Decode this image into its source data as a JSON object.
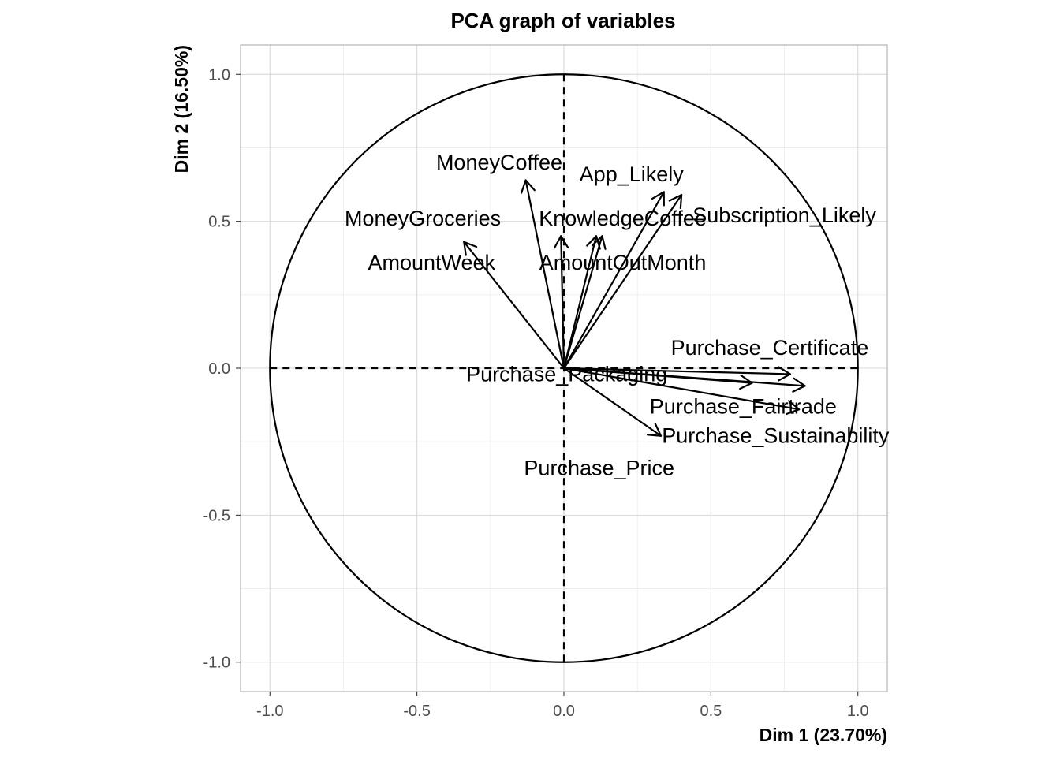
{
  "chart_data": {
    "type": "scatter",
    "title": "PCA graph of variables",
    "xlabel": "Dim 1 (23.70%)",
    "ylabel": "Dim 2 (16.50%)",
    "xlim": [
      -1.1,
      1.1
    ],
    "ylim": [
      -1.1,
      1.1
    ],
    "x_ticks": [
      -1.0,
      -0.5,
      0.0,
      0.5,
      1.0
    ],
    "y_ticks": [
      -1.0,
      -0.5,
      0.0,
      0.5,
      1.0
    ],
    "x_tick_labels": [
      "-1.0",
      "-0.5",
      "0.0",
      "0.5",
      "1.0"
    ],
    "y_tick_labels": [
      "-1.0",
      "-0.5",
      "0.0",
      "0.5",
      "1.0"
    ],
    "grid": true,
    "unit_circle": true,
    "variables": [
      {
        "name": "MoneyCoffee",
        "x": -0.13,
        "y": 0.64,
        "label_x": -0.22,
        "label_y": 0.7
      },
      {
        "name": "App_Likely",
        "x": 0.34,
        "y": 0.6,
        "label_x": 0.23,
        "label_y": 0.66
      },
      {
        "name": "Subscription_Likely",
        "x": 0.4,
        "y": 0.59,
        "label_x": 0.75,
        "label_y": 0.52
      },
      {
        "name": "MoneyGroceries",
        "x": -0.01,
        "y": 0.45,
        "label_x": -0.48,
        "label_y": 0.51
      },
      {
        "name": "KnowledgeCoffee",
        "x": 0.11,
        "y": 0.45,
        "label_x": 0.2,
        "label_y": 0.51
      },
      {
        "name": "AmountWeek",
        "x": -0.34,
        "y": 0.43,
        "label_x": -0.45,
        "label_y": 0.36
      },
      {
        "name": "AmountOutMonth",
        "x": 0.13,
        "y": 0.45,
        "label_x": 0.2,
        "label_y": 0.36
      },
      {
        "name": "Purchase_Certificate",
        "x": 0.77,
        "y": -0.02,
        "label_x": 0.7,
        "label_y": 0.07
      },
      {
        "name": "Purchase_Packaging",
        "x": 0.64,
        "y": -0.05,
        "label_x": 0.01,
        "label_y": -0.02
      },
      {
        "name": "Purchase_Fairtrade",
        "x": 0.82,
        "y": -0.06,
        "label_x": 0.61,
        "label_y": -0.13
      },
      {
        "name": "Purchase_Sustainability",
        "x": 0.8,
        "y": -0.14,
        "label_x": 0.72,
        "label_y": -0.23
      },
      {
        "name": "Purchase_Price",
        "x": 0.33,
        "y": -0.23,
        "label_x": 0.12,
        "label_y": -0.34
      }
    ]
  }
}
